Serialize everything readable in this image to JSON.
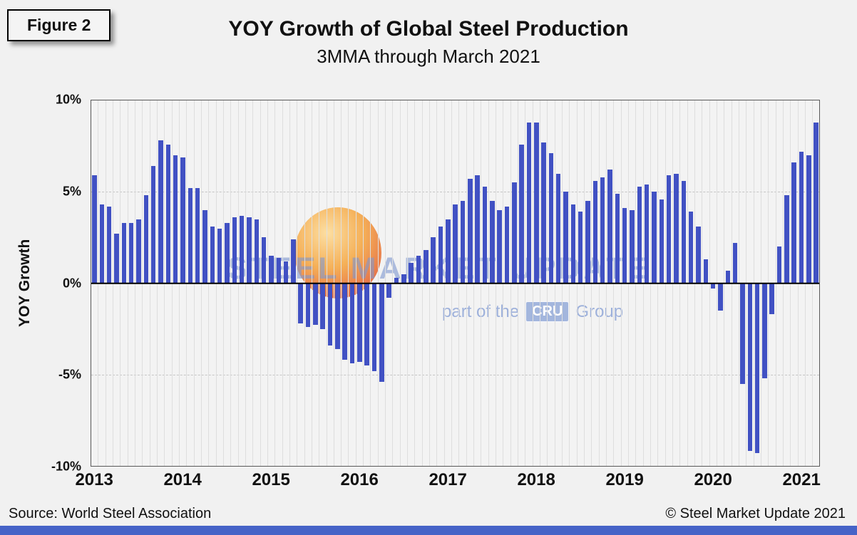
{
  "figure_label": "Figure 2",
  "header": {
    "title": "YOY Growth of Global Steel Production",
    "subtitle": "3MMA through March 2021"
  },
  "footer": {
    "source": "Source: World Steel Association",
    "copyright": "© Steel Market Update 2021"
  },
  "watermark": {
    "brand": "STEEL MARKET UPDATE",
    "tagline_prefix": "part of the",
    "tagline_cru": "CRU",
    "tagline_suffix": "Group"
  },
  "chart_data": {
    "type": "bar",
    "title": "YOY Growth of Global Steel Production",
    "subtitle": "3MMA through March 2021",
    "ylabel": "YOY Growth",
    "xlabel": "",
    "unit": "% YoY growth, 3-month moving average",
    "ylim": [
      -10,
      10
    ],
    "yticks": [
      10,
      5,
      0,
      -5,
      -10
    ],
    "ytick_labels": [
      "10%",
      "5%",
      "0%",
      "-5%",
      "-10%"
    ],
    "x_year_labels": [
      "2013",
      "2014",
      "2015",
      "2016",
      "2017",
      "2018",
      "2019",
      "2020",
      "2021"
    ],
    "frequency": "monthly",
    "first_month": "2013-01",
    "last_month": "2021-03",
    "grid": true,
    "legend": "none",
    "bar_color": "#4151C3",
    "values": [
      5.9,
      4.3,
      4.2,
      2.7,
      3.3,
      3.3,
      3.5,
      4.8,
      6.4,
      7.8,
      7.6,
      7.0,
      6.9,
      5.2,
      5.2,
      4.0,
      3.1,
      3.0,
      3.3,
      3.6,
      3.7,
      3.6,
      3.5,
      2.5,
      1.5,
      1.4,
      1.2,
      2.4,
      -2.2,
      -2.4,
      -2.3,
      -2.5,
      -3.4,
      -3.6,
      -4.2,
      -4.4,
      -4.3,
      -4.5,
      -4.8,
      -5.4,
      -0.8,
      0.3,
      0.5,
      1.1,
      1.5,
      1.8,
      2.5,
      3.1,
      3.5,
      4.3,
      4.5,
      5.7,
      5.9,
      5.3,
      4.5,
      4.0,
      4.2,
      5.5,
      7.6,
      8.8,
      8.8,
      7.7,
      7.1,
      6.0,
      5.0,
      4.3,
      3.9,
      4.5,
      5.6,
      5.8,
      6.2,
      4.9,
      4.1,
      4.0,
      5.3,
      5.4,
      5.0,
      4.6,
      5.9,
      6.0,
      5.6,
      3.9,
      3.1,
      1.3,
      -0.3,
      -1.5,
      0.7,
      2.2,
      -5.5,
      -9.2,
      -9.3,
      -5.2,
      -1.7,
      2.0,
      4.8,
      6.6,
      7.2,
      7.0,
      8.8
    ]
  }
}
